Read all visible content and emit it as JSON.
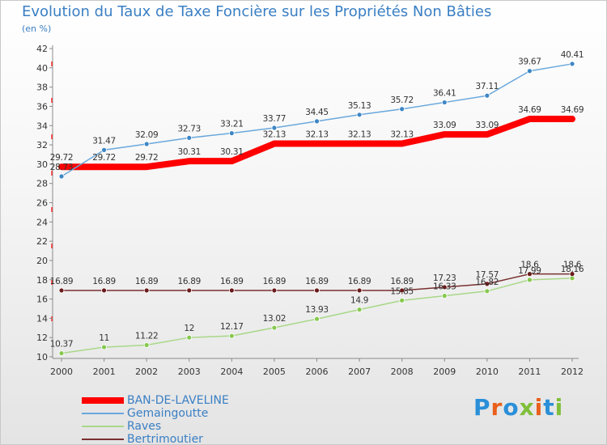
{
  "title": "Evolution du Taux de Taxe Foncière sur les Propriétés Non Bâties",
  "unit": "(en %)",
  "logo": {
    "text": "Proxiti",
    "colors": [
      "#2a8fd8",
      "#e8601c",
      "#2a8fd8",
      "#7fbf3a",
      "#e8601c",
      "#2a8fd8",
      "#7fbf3a"
    ]
  },
  "chart_data": {
    "type": "line",
    "title": "Evolution du Taux de Taxe Foncière sur les Propriétés Non Bâties",
    "ylabel": "(en %)",
    "xlabel": "",
    "x": [
      "2000",
      "2001",
      "2002",
      "2003",
      "2004",
      "2005",
      "2006",
      "2007",
      "2008",
      "2009",
      "2010",
      "2011",
      "2012"
    ],
    "yticks": [
      10,
      12,
      14,
      16,
      18,
      20,
      22,
      24,
      26,
      28,
      30,
      32,
      34,
      36,
      38,
      40,
      42
    ],
    "ylim": [
      10,
      42
    ],
    "grid": false,
    "legend_position": "bottom-left",
    "series": [
      {
        "name": "BAN-DE-LAVELINE",
        "color": "#ff0000",
        "width": 8,
        "markers": false,
        "values": [
          29.72,
          29.72,
          29.72,
          30.31,
          30.31,
          32.13,
          32.13,
          32.13,
          32.13,
          33.09,
          33.09,
          34.69,
          34.69
        ],
        "labels": [
          "29.72",
          "29.72",
          "29.72",
          "30.31",
          "30.31",
          "32.13",
          "32.13",
          "32.13",
          "32.13",
          "33.09",
          "33.09",
          "34.69",
          "34.69"
        ]
      },
      {
        "name": "Gemaingoutte",
        "color": "#6aa8dc",
        "width": 1.5,
        "markers": true,
        "marker_color": "#3d86c6",
        "values": [
          28.73,
          31.47,
          32.09,
          32.73,
          33.21,
          33.77,
          34.45,
          35.13,
          35.72,
          36.41,
          37.11,
          39.67,
          40.41
        ],
        "labels": [
          "28.73",
          "31.47",
          "32.09",
          "32.73",
          "33.21",
          "33.77",
          "34.45",
          "35.13",
          "35.72",
          "36.41",
          "37.11",
          "39.67",
          "40.41"
        ]
      },
      {
        "name": "Raves",
        "color": "#a8d888",
        "width": 1.5,
        "markers": true,
        "marker_color": "#86c84e",
        "values": [
          10.37,
          11,
          11.22,
          12,
          12.17,
          13.02,
          13.93,
          14.9,
          15.85,
          16.33,
          16.82,
          17.99,
          18.16
        ],
        "labels": [
          "10.37",
          "11",
          "11.22",
          "12",
          "12.17",
          "13.02",
          "13.93",
          "14.9",
          "15.85",
          "16.33",
          "16.82",
          "17.99",
          "18.16"
        ]
      },
      {
        "name": "Bertrimoutier",
        "color": "#7a3030",
        "width": 1.5,
        "markers": true,
        "marker_color": "#6a1a1a",
        "values": [
          16.89,
          16.89,
          16.89,
          16.89,
          16.89,
          16.89,
          16.89,
          16.89,
          16.89,
          17.23,
          17.57,
          18.6,
          18.6
        ],
        "labels": [
          "16.89",
          "16.89",
          "16.89",
          "16.89",
          "16.89",
          "16.89",
          "16.89",
          "16.89",
          "16.89",
          "17.23",
          "17.57",
          "18.6",
          "18.6"
        ]
      }
    ]
  }
}
